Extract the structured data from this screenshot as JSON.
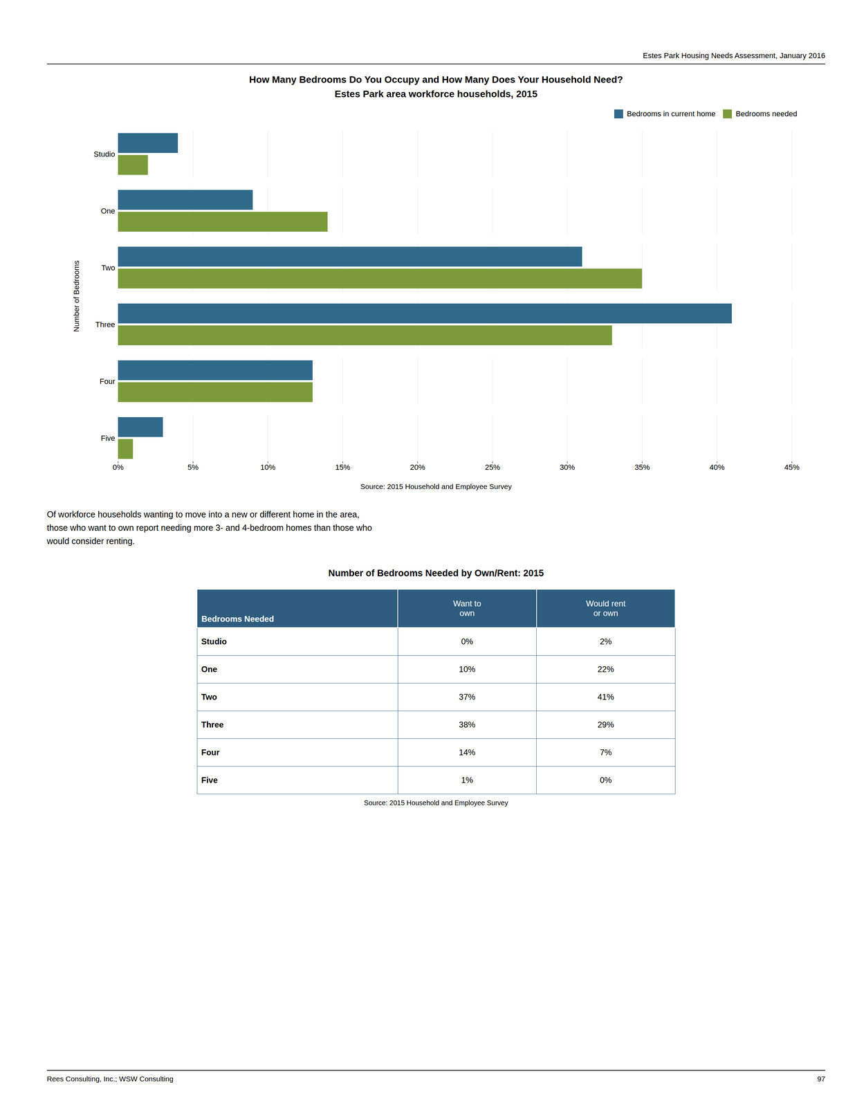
{
  "header": "Estes Park Housing Needs Assessment, January 2016",
  "chart_data": {
    "type": "bar",
    "orientation": "horizontal",
    "title": "How Many Bedrooms Do You Occupy and How Many Does Your Household Need?",
    "subtitle": "Estes Park area workforce households, 2015",
    "categories": [
      "Studio",
      "One",
      "Two",
      "Three",
      "Four",
      "Five"
    ],
    "series": [
      {
        "name": "Bedrooms in current home",
        "color": "#31698A",
        "values": [
          0.04,
          0.09,
          0.31,
          0.41,
          0.13,
          0.03
        ]
      },
      {
        "name": "Bedrooms needed",
        "color": "#7B9B3A",
        "values": [
          0.02,
          0.14,
          0.35,
          0.33,
          0.13,
          0.01
        ]
      }
    ],
    "ylabel": "Number of Bedrooms",
    "xlim": [
      0.0,
      0.45
    ],
    "xticks": [
      {
        "value": 0.0,
        "label": "0%"
      },
      {
        "value": 0.05,
        "label": "5%"
      },
      {
        "value": 0.1,
        "label": "10%"
      },
      {
        "value": 0.15,
        "label": "15%"
      },
      {
        "value": 0.2,
        "label": "20%"
      },
      {
        "value": 0.25,
        "label": "25%"
      },
      {
        "value": 0.3,
        "label": "30%"
      },
      {
        "value": 0.35,
        "label": "35%"
      },
      {
        "value": 0.4,
        "label": "40%"
      },
      {
        "value": 0.45,
        "label": "45%"
      }
    ],
    "grid": true,
    "legend": "upper right",
    "source": "Source:  2015 Household and Employee Survey"
  },
  "body": [
    "Of workforce households wanting to move into a new or different home in the area,",
    "those who want to own report needing more 3- and 4-bedroom homes than those who",
    "would consider renting."
  ],
  "table": {
    "title": "Number of Bedrooms Needed by Own/Rent: 2015",
    "color": "#2E5C7E",
    "columns": [
      [
        "Bedrooms Needed"
      ],
      [
        "Want to",
        "own"
      ],
      [
        "Would rent",
        "or own"
      ]
    ],
    "rows": [
      [
        "Studio",
        "0%",
        "2%"
      ],
      [
        "One",
        "10%",
        "22%"
      ],
      [
        "Two",
        "37%",
        "41%"
      ],
      [
        "Three",
        "38%",
        "29%"
      ],
      [
        "Four",
        "14%",
        "7%"
      ],
      [
        "Five",
        "1%",
        "0%"
      ]
    ],
    "source": "Source: 2015 Household and Employee Survey"
  },
  "footer": [
    "Rees Consulting, Inc.; WSW Consulting",
    "97"
  ]
}
